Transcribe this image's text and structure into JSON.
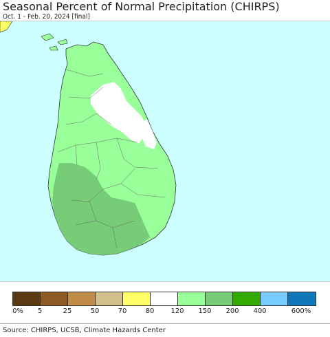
{
  "header": {
    "title": "Seasonal Percent of Normal Precipitation (CHIRPS)",
    "subtitle": "Oct. 1 - Feb. 20, 2024 [final]"
  },
  "map": {
    "ocean_color": "#ccffff"
  },
  "legend": {
    "colors": [
      "#5a3a10",
      "#8c5a22",
      "#c08c48",
      "#d2c08c",
      "#ffff66",
      "#ffffff",
      "#99ff99",
      "#77cc77",
      "#33aa00",
      "#77ccff",
      "#1177bb"
    ],
    "labels": [
      "0%",
      "5",
      "25",
      "50",
      "70",
      "80",
      "120",
      "150",
      "200",
      "400",
      "600%"
    ]
  },
  "footer": {
    "source": "Source: CHIRPS, UCSB, Climate Hazards Center"
  }
}
